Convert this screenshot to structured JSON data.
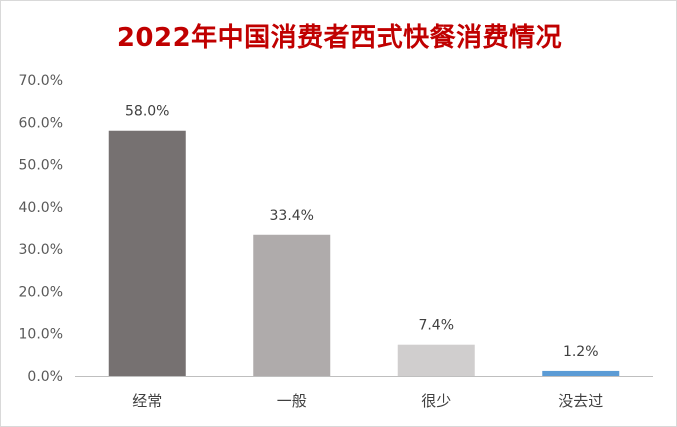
{
  "chart_data": {
    "type": "bar",
    "title": "2022年中国消费者西式快餐消费情况",
    "categories": [
      "经常",
      "一般",
      "很少",
      "没去过"
    ],
    "values": [
      58.0,
      33.4,
      7.4,
      1.2
    ],
    "value_labels": [
      "58.0%",
      "33.4%",
      "7.4%",
      "1.2%"
    ],
    "y_ticks": [
      "0.0%",
      "10.0%",
      "20.0%",
      "30.0%",
      "40.0%",
      "50.0%",
      "60.0%",
      "70.0%"
    ],
    "ylim": [
      0,
      70
    ],
    "grid": false,
    "colors": [
      "#767171",
      "#afabab",
      "#d0cece",
      "#5b9bd5"
    ]
  }
}
